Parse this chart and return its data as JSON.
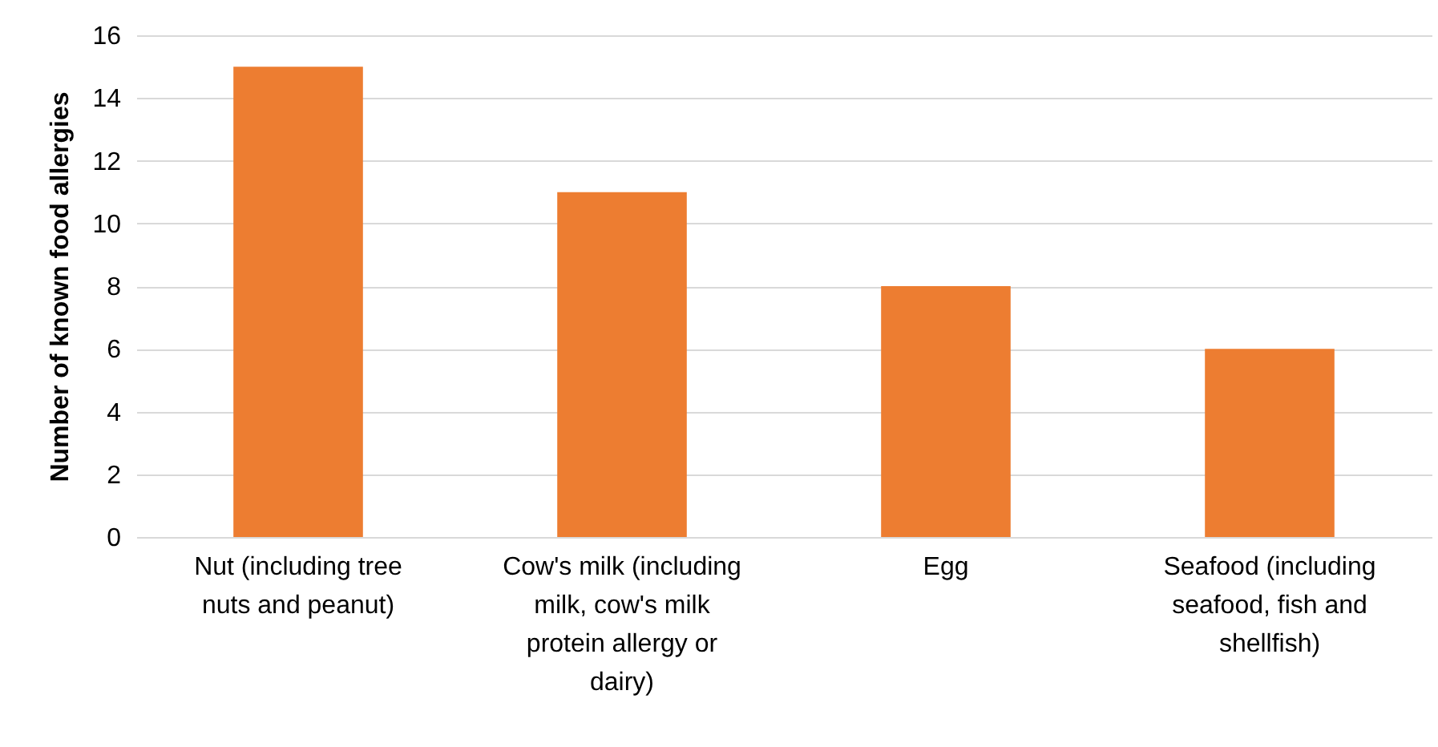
{
  "chart_data": {
    "type": "bar",
    "ylabel": "Number of known food allergies",
    "categories": [
      "Nut (including tree nuts and peanut)",
      "Cow's milk (including milk, cow's milk protein allergy or dairy)",
      "Egg",
      "Seafood (including seafood, fish and shellfish)"
    ],
    "values": [
      15,
      11,
      8,
      6
    ],
    "color": "#ed7d31",
    "ylim": [
      0,
      16
    ],
    "yticks": [
      0,
      2,
      4,
      6,
      8,
      10,
      12,
      14,
      16
    ],
    "grid": "y"
  }
}
